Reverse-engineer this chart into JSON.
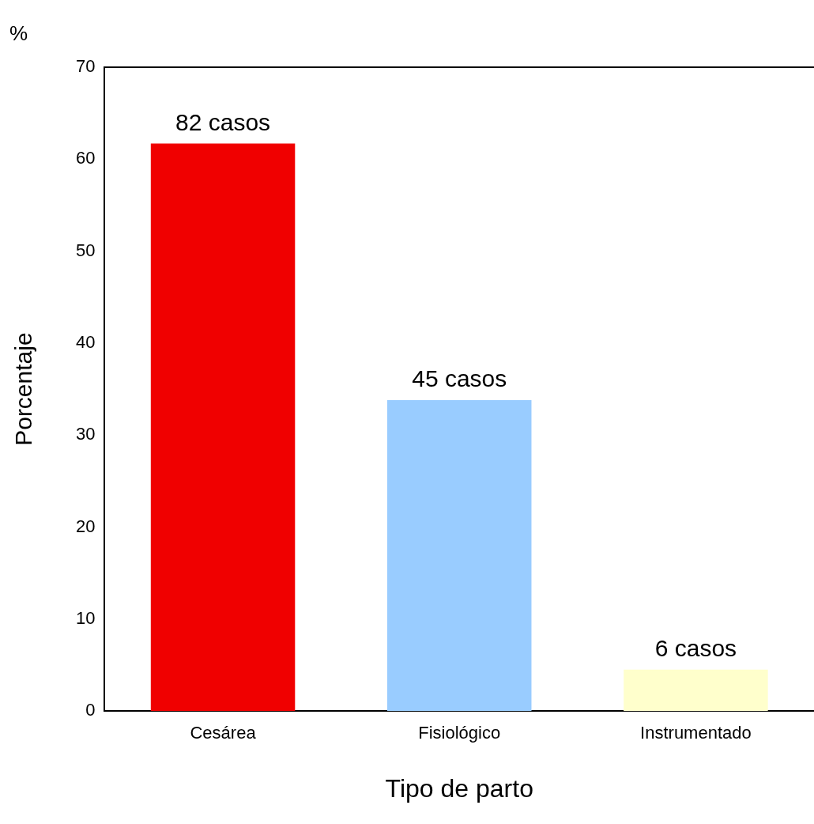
{
  "chart_data": {
    "type": "bar",
    "xlabel": "Tipo de parto",
    "ylabel": "Porcentaje",
    "annotations": [
      "%",
      {
        "text": "82 casos",
        "x": "Cesárea",
        "y": 61.7
      },
      {
        "text": "45 casos",
        "x": "Fisiológico",
        "y": 33.8
      },
      {
        "text": "6 casos",
        "x": "Instrumentado",
        "y": 4.5
      }
    ],
    "categories": [
      "Cesárea",
      "Fisiológico",
      "Instrumentado"
    ],
    "values": [
      61.7,
      33.8,
      4.5
    ],
    "colors": [
      "#f00000",
      "#99ccff",
      "#ffffcc"
    ],
    "ylim": [
      0,
      70
    ],
    "yticks": [
      0,
      10,
      20,
      30,
      40,
      50,
      60,
      70
    ],
    "grid": false,
    "legend": false
  }
}
